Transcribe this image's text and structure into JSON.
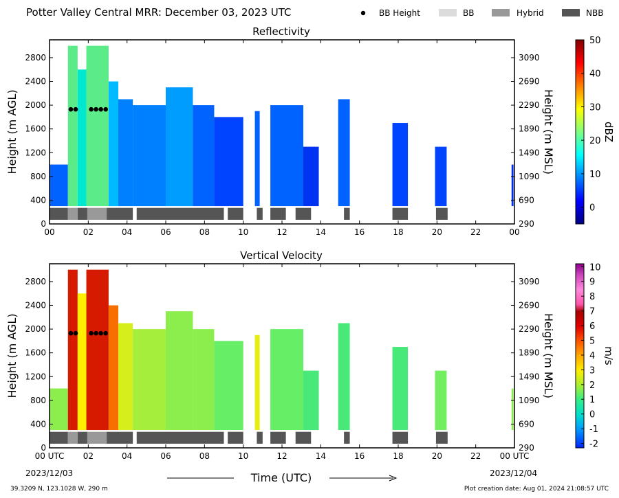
{
  "header": {
    "title": "Potter Valley Central MRR:  December 03, 2023 UTC",
    "legend": [
      {
        "label": "BB Height",
        "color": "#000000",
        "kind": "dot"
      },
      {
        "label": "BB",
        "color": "#dcdcdc",
        "kind": "box"
      },
      {
        "label": "Hybrid",
        "color": "#999999",
        "kind": "box"
      },
      {
        "label": "NBB",
        "color": "#555555",
        "kind": "box"
      }
    ]
  },
  "footer": {
    "x_axis_title": "Time (UTC)",
    "start_date": "2023/12/03",
    "end_date": "2023/12/04",
    "location": "39.3209 N, 123.1028 W, 290 m",
    "creation": "Plot creation date: Aug 01, 2024 21:08:57 UTC"
  },
  "chart_data": [
    {
      "type": "heatmap",
      "title": "Reflectivity",
      "ylabel": "Height (m AGL)",
      "y2label": "Height (m MSL)",
      "xlim": [
        0,
        24
      ],
      "ylim": [
        0,
        3100
      ],
      "x_ticks": [
        "00",
        "02",
        "04",
        "06",
        "08",
        "10",
        "12",
        "14",
        "16",
        "18",
        "20",
        "22",
        "00"
      ],
      "y_ticks": [
        0,
        400,
        800,
        1200,
        1600,
        2000,
        2400,
        2800
      ],
      "y2_ticks": [
        290,
        690,
        1090,
        1490,
        1890,
        2290,
        2690,
        3090
      ],
      "colorbar": {
        "label": "dBZ",
        "ticks": [
          0,
          10,
          20,
          30,
          40,
          50
        ],
        "min": -5,
        "max": 50
      },
      "bb_height": {
        "m_agl": 1930,
        "hours": [
          1.1,
          1.35,
          2.15,
          2.4,
          2.65,
          2.9
        ]
      },
      "columns": [
        {
          "t0": 0.0,
          "t1": 0.95,
          "top": 1000,
          "level": 5
        },
        {
          "t0": 0.95,
          "t1": 1.45,
          "top": 3000,
          "level": 13
        },
        {
          "t0": 1.45,
          "t1": 1.9,
          "top": 2600,
          "level": 11
        },
        {
          "t0": 1.9,
          "t1": 3.05,
          "top": 3000,
          "level": 13
        },
        {
          "t0": 3.05,
          "t1": 3.55,
          "top": 2400,
          "level": 8
        },
        {
          "t0": 3.55,
          "t1": 4.3,
          "top": 2100,
          "level": 6
        },
        {
          "t0": 4.3,
          "t1": 6.0,
          "top": 2000,
          "level": 6
        },
        {
          "t0": 6.0,
          "t1": 7.4,
          "top": 2300,
          "level": 7
        },
        {
          "t0": 7.4,
          "t1": 8.5,
          "top": 2000,
          "level": 5
        },
        {
          "t0": 8.5,
          "t1": 10.0,
          "top": 1800,
          "level": 4
        },
        {
          "t0": 10.6,
          "t1": 10.85,
          "top": 1900,
          "level": 5
        },
        {
          "t0": 11.4,
          "t1": 13.1,
          "top": 2000,
          "level": 5
        },
        {
          "t0": 13.1,
          "t1": 13.9,
          "top": 1300,
          "level": 3
        },
        {
          "t0": 14.9,
          "t1": 15.5,
          "top": 2100,
          "level": 5
        },
        {
          "t0": 17.7,
          "t1": 18.5,
          "top": 1700,
          "level": 4
        },
        {
          "t0": 19.9,
          "t1": 20.5,
          "top": 1300,
          "level": 4
        },
        {
          "t0": 23.85,
          "t1": 23.95,
          "top": 1000,
          "level": 3
        }
      ],
      "bb_type_bars": [
        {
          "t0": 0.0,
          "t1": 0.95,
          "type": "NBB"
        },
        {
          "t0": 0.95,
          "t1": 1.45,
          "type": "Hybrid"
        },
        {
          "t0": 1.45,
          "t1": 1.95,
          "type": "NBB"
        },
        {
          "t0": 1.95,
          "t1": 2.95,
          "type": "Hybrid"
        },
        {
          "t0": 2.95,
          "t1": 4.3,
          "type": "NBB"
        },
        {
          "t0": 4.5,
          "t1": 9.0,
          "type": "NBB"
        },
        {
          "t0": 9.2,
          "t1": 10.0,
          "type": "NBB"
        },
        {
          "t0": 10.7,
          "t1": 11.0,
          "type": "NBB"
        },
        {
          "t0": 11.4,
          "t1": 12.2,
          "type": "NBB"
        },
        {
          "t0": 12.7,
          "t1": 13.5,
          "type": "NBB"
        },
        {
          "t0": 15.2,
          "t1": 15.5,
          "type": "NBB"
        },
        {
          "t0": 17.7,
          "t1": 18.5,
          "type": "NBB"
        },
        {
          "t0": 19.95,
          "t1": 20.55,
          "type": "NBB"
        }
      ]
    },
    {
      "type": "heatmap",
      "title": "Vertical Velocity",
      "ylabel": "Height (m AGL)",
      "y2label": "Height (m MSL)",
      "xlim": [
        0,
        24
      ],
      "ylim": [
        0,
        3100
      ],
      "x_ticks": [
        "00 UTC",
        "02",
        "04",
        "06",
        "08",
        "10",
        "12",
        "14",
        "16",
        "18",
        "20",
        "22",
        "00 UTC"
      ],
      "y_ticks": [
        0,
        400,
        800,
        1200,
        1600,
        2000,
        2400,
        2800
      ],
      "y2_ticks": [
        290,
        690,
        1090,
        1490,
        1890,
        2290,
        2690,
        3090
      ],
      "colorbar": {
        "label": "m/s",
        "ticks": [
          -2,
          -1,
          0,
          1,
          2,
          3,
          4,
          5,
          6,
          7,
          8,
          9,
          10
        ],
        "min": -2.3,
        "max": 10.2
      },
      "bb_height": {
        "m_agl": 1930,
        "hours": [
          1.1,
          1.35,
          2.15,
          2.4,
          2.65,
          2.9
        ]
      },
      "columns": [
        {
          "t0": 0.0,
          "t1": 0.95,
          "top": 1000,
          "level": 1.5
        },
        {
          "t0": 0.95,
          "t1": 1.45,
          "top": 3000,
          "level": 5.5
        },
        {
          "t0": 1.45,
          "t1": 1.9,
          "top": 2600,
          "level": 3.0
        },
        {
          "t0": 1.9,
          "t1": 3.05,
          "top": 3000,
          "level": 5.5
        },
        {
          "t0": 3.05,
          "t1": 3.55,
          "top": 2400,
          "level": 4.5
        },
        {
          "t0": 3.55,
          "t1": 4.3,
          "top": 2100,
          "level": 2.2
        },
        {
          "t0": 4.3,
          "t1": 6.0,
          "top": 2000,
          "level": 1.7
        },
        {
          "t0": 6.0,
          "t1": 7.4,
          "top": 2300,
          "level": 1.5
        },
        {
          "t0": 7.4,
          "t1": 8.5,
          "top": 2000,
          "level": 1.5
        },
        {
          "t0": 8.5,
          "t1": 10.0,
          "top": 1800,
          "level": 1.2
        },
        {
          "t0": 10.6,
          "t1": 10.85,
          "top": 1900,
          "level": 2.5
        },
        {
          "t0": 11.4,
          "t1": 13.1,
          "top": 2000,
          "level": 1.2
        },
        {
          "t0": 13.1,
          "t1": 13.9,
          "top": 1300,
          "level": 1.0
        },
        {
          "t0": 14.9,
          "t1": 15.5,
          "top": 2100,
          "level": 1.0
        },
        {
          "t0": 17.7,
          "t1": 18.5,
          "top": 1700,
          "level": 1.0
        },
        {
          "t0": 19.9,
          "t1": 20.5,
          "top": 1300,
          "level": 1.3
        },
        {
          "t0": 23.85,
          "t1": 23.95,
          "top": 1000,
          "level": 1.5
        }
      ],
      "bb_type_bars": [
        {
          "t0": 0.0,
          "t1": 0.95,
          "type": "NBB"
        },
        {
          "t0": 0.95,
          "t1": 1.45,
          "type": "Hybrid"
        },
        {
          "t0": 1.45,
          "t1": 1.95,
          "type": "NBB"
        },
        {
          "t0": 1.95,
          "t1": 2.95,
          "type": "Hybrid"
        },
        {
          "t0": 2.95,
          "t1": 4.3,
          "type": "NBB"
        },
        {
          "t0": 4.5,
          "t1": 9.0,
          "type": "NBB"
        },
        {
          "t0": 9.2,
          "t1": 10.0,
          "type": "NBB"
        },
        {
          "t0": 10.7,
          "t1": 11.0,
          "type": "NBB"
        },
        {
          "t0": 11.4,
          "t1": 12.2,
          "type": "NBB"
        },
        {
          "t0": 12.7,
          "t1": 13.5,
          "type": "NBB"
        },
        {
          "t0": 15.2,
          "t1": 15.5,
          "type": "NBB"
        },
        {
          "t0": 17.7,
          "t1": 18.5,
          "type": "NBB"
        },
        {
          "t0": 19.95,
          "t1": 20.55,
          "type": "NBB"
        }
      ]
    }
  ]
}
